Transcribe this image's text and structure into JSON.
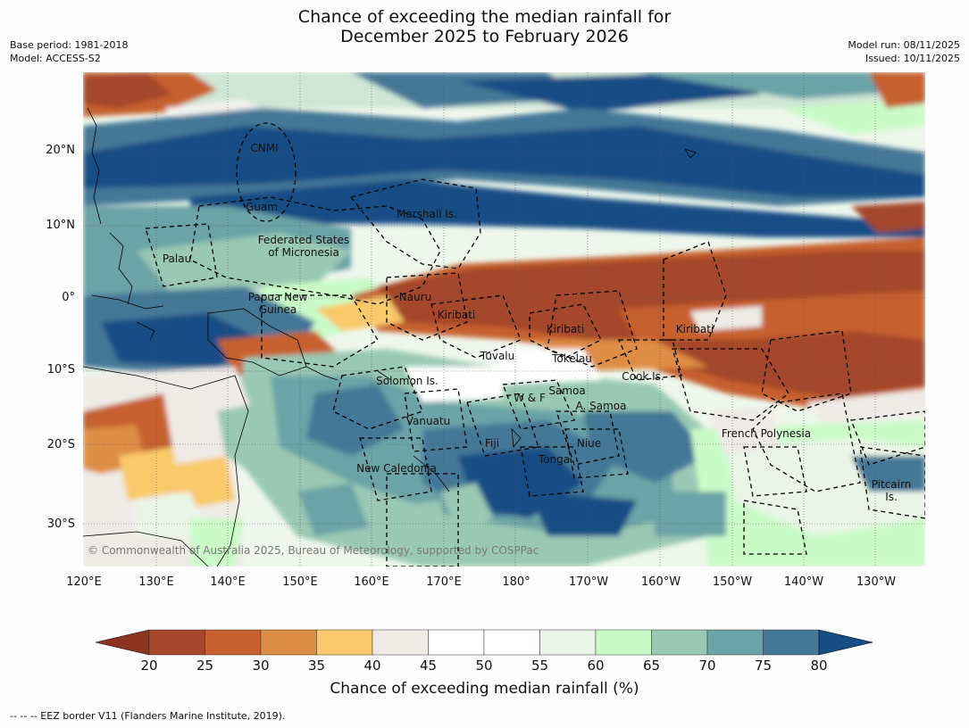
{
  "title": {
    "line1": "Chance of exceeding the median rainfall for",
    "line2": "December 2025 to February 2026"
  },
  "meta": {
    "base_period": "Base period: 1981-2018",
    "model": "Model: ACCESS-S2",
    "model_run": "Model run: 08/11/2025",
    "issued": "Issued: 10/11/2025"
  },
  "axes": {
    "lat_labels": [
      "20°N",
      "10°N",
      "0°",
      "10°S",
      "20°S",
      "30°S"
    ],
    "lon_labels": [
      "120°E",
      "130°E",
      "140°E",
      "150°E",
      "160°E",
      "170°E",
      "180°",
      "170°W",
      "160°W",
      "150°W",
      "140°W",
      "130°W"
    ]
  },
  "places": {
    "cnmi": "CNMI",
    "guam": "Guam",
    "marshall": "Marshall Is.",
    "fsm": "Federated States\nof Micronesia",
    "palau": "Palau",
    "png": "Papua New\nGuinea",
    "nauru": "Nauru",
    "kiribati_w": "Kiribati",
    "kiribati_c": "Kiribati",
    "kiribati_e": "Kiribati",
    "tuvalu": "Tuvalu",
    "tokelau": "Tokelau",
    "cook": "Cook Is.",
    "solomon": "Solomon Is.",
    "wf": "W & F",
    "samoa": "Samoa",
    "asamoa": "A. Samoa",
    "vanuatu": "Vanuatu",
    "fiji": "Fiji",
    "niue": "Niue",
    "tonga": "Tonga",
    "new_caledonia": "New Caledonia",
    "french_polynesia": "French Polynesia",
    "pitcairn": "Pitcairn\nIs."
  },
  "copyright": "© Commonwealth of Australia 2025, Bureau of Meteorology, supported by COSPPac",
  "colorbar": {
    "ticks": [
      "20",
      "25",
      "30",
      "35",
      "40",
      "45",
      "50",
      "55",
      "60",
      "65",
      "70",
      "75",
      "80"
    ],
    "colors": [
      "#a4472a",
      "#c6612f",
      "#de8d45",
      "#f9c96b",
      "#eeebe6",
      "#ffffff",
      "#ffffff",
      "#e9f6e6",
      "#c9fbc7",
      "#99c9b4",
      "#6ca3a6",
      "#457897"
    ],
    "under_color": "#8e3320",
    "over_color": "#144e85",
    "label": "Chance of exceeding median rainfall (%)"
  },
  "footnote": "--  --  -- EEZ border V11 (Flanders Marine Institute, 2019)."
}
